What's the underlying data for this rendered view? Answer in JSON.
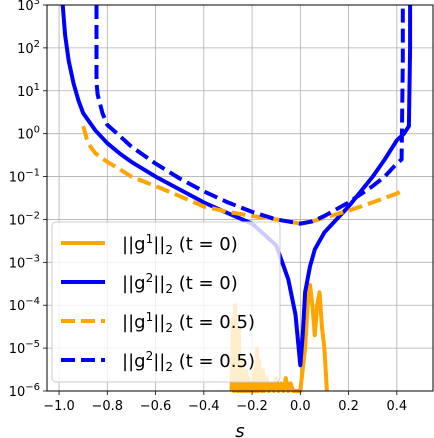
{
  "chart_data": {
    "type": "line",
    "title": "",
    "xlabel": "s",
    "ylabel": "",
    "xlim": [
      -1.05,
      0.55
    ],
    "ylim": [
      1e-06,
      1000.0
    ],
    "yscale": "log",
    "grid": true,
    "legend_location": "lower left",
    "x_ticks": [
      -1.0,
      -0.8,
      -0.6,
      -0.4,
      -0.2,
      0.0,
      0.2,
      0.4
    ],
    "x_tick_labels": [
      "−1.0",
      "−0.8",
      "−0.6",
      "−0.4",
      "−0.2",
      "0.0",
      "0.2",
      "0.4"
    ],
    "y_ticks": [
      1e-06,
      1e-05,
      0.0001,
      0.001,
      0.01,
      0.1,
      1.0,
      10.0,
      100.0,
      1000.0
    ],
    "y_tick_labels": [
      {
        "base": "10",
        "exp": "−6"
      },
      {
        "base": "10",
        "exp": "−5"
      },
      {
        "base": "10",
        "exp": "−4"
      },
      {
        "base": "10",
        "exp": "−3"
      },
      {
        "base": "10",
        "exp": "−2"
      },
      {
        "base": "10",
        "exp": "−1"
      },
      {
        "base": "10",
        "exp": "0"
      },
      {
        "base": "10",
        "exp": "1"
      },
      {
        "base": "10",
        "exp": "2"
      },
      {
        "base": "10",
        "exp": "3"
      }
    ],
    "series": [
      {
        "name": "||g¹||₂ (t = 0)",
        "label_parts": {
          "sup": "1",
          "cond": "(t = 0)"
        },
        "color": "#FFA500",
        "dash": "solid",
        "x": [
          -0.285,
          -0.28,
          -0.275,
          -0.27,
          -0.26,
          -0.255,
          -0.25,
          -0.245,
          -0.24,
          -0.235,
          -0.23,
          -0.225,
          -0.22,
          -0.215,
          -0.21,
          -0.2,
          -0.195,
          -0.19,
          -0.185,
          -0.18,
          -0.175,
          -0.17,
          -0.16,
          -0.155,
          -0.15,
          -0.14,
          -0.13,
          -0.12,
          -0.11,
          -0.1,
          -0.09,
          -0.08,
          -0.07,
          -0.06,
          -0.05,
          -0.04,
          -0.03,
          -0.02,
          0.0,
          0.02,
          0.03,
          0.04,
          0.05,
          0.06,
          0.07,
          0.08,
          0.09,
          0.1,
          0.11
        ],
        "y": [
          1e-06,
          5e-05,
          1e-06,
          0.0001,
          1e-06,
          3e-05,
          1e-06,
          5e-06,
          1e-06,
          2e-06,
          1e-06,
          3e-06,
          1e-06,
          2e-06,
          1e-06,
          1.5e-06,
          1e-06,
          3e-06,
          1e-06,
          1e-05,
          1e-06,
          5e-06,
          1e-06,
          3e-06,
          1e-06,
          2e-06,
          1e-06,
          1.5e-06,
          1e-06,
          2e-06,
          1e-06,
          1.5e-06,
          1e-06,
          2e-06,
          1e-06,
          1.5e-06,
          1e-06,
          1e-06,
          1e-06,
          1e-05,
          0.0001,
          0.0003,
          0.0001,
          2e-05,
          0.0001,
          0.0002,
          3e-05,
          1e-05,
          1e-06
        ]
      },
      {
        "name": "||g²||₂ (t = 0)",
        "label_parts": {
          "sup": "2",
          "cond": "(t = 0)"
        },
        "color": "#0000FF",
        "dash": "solid",
        "x": [
          -0.985,
          -0.975,
          -0.96,
          -0.94,
          -0.92,
          -0.9,
          -0.85,
          -0.8,
          -0.75,
          -0.7,
          -0.6,
          -0.5,
          -0.4,
          -0.3,
          -0.2,
          -0.1,
          -0.05,
          -0.02,
          0.0,
          0.01,
          0.02,
          0.04,
          0.06,
          0.1,
          0.15,
          0.2,
          0.3,
          0.35,
          0.4,
          0.43,
          0.45,
          0.455,
          0.455
        ],
        "y": [
          1000,
          200,
          50,
          15,
          6,
          3,
          1.2,
          0.6,
          0.35,
          0.22,
          0.1,
          0.05,
          0.025,
          0.014,
          0.008,
          0.0025,
          0.0004,
          6e-05,
          4e-06,
          2e-05,
          0.0002,
          0.0008,
          0.002,
          0.005,
          0.01,
          0.02,
          0.1,
          0.25,
          0.7,
          1.0,
          1.5,
          100,
          1000
        ]
      },
      {
        "name": "||g¹||₂ (t = 0.5)",
        "label_parts": {
          "sup": "1",
          "cond": "(t = 0.5)"
        },
        "color": "#FFA500",
        "dash": "dashed",
        "x": [
          -0.9,
          -0.88,
          -0.85,
          -0.8,
          -0.75,
          -0.7,
          -0.6,
          -0.5,
          -0.4,
          -0.3,
          -0.2,
          -0.1,
          0.0,
          0.05,
          0.1,
          0.2,
          0.3,
          0.4,
          0.43
        ],
        "y": [
          1.5,
          0.6,
          0.35,
          0.22,
          0.15,
          0.1,
          0.06,
          0.035,
          0.02,
          0.015,
          0.012,
          0.01,
          0.008,
          0.009,
          0.011,
          0.016,
          0.025,
          0.04,
          0.05
        ]
      },
      {
        "name": "||g²||₂ (t = 0.5)",
        "label_parts": {
          "sup": "2",
          "cond": "(t = 0.5)"
        },
        "color": "#0000FF",
        "dash": "dashed",
        "x": [
          -0.845,
          -0.845,
          -0.84,
          -0.82,
          -0.8,
          -0.75,
          -0.7,
          -0.6,
          -0.5,
          -0.4,
          -0.3,
          -0.2,
          -0.1,
          0.0,
          0.05,
          0.1,
          0.2,
          0.3,
          0.35,
          0.4,
          0.42,
          0.425,
          0.425
        ],
        "y": [
          1000,
          15,
          8,
          3,
          1.6,
          0.9,
          0.5,
          0.2,
          0.09,
          0.045,
          0.025,
          0.015,
          0.01,
          0.008,
          0.009,
          0.012,
          0.025,
          0.06,
          0.1,
          0.2,
          0.25,
          50,
          1000
        ]
      }
    ]
  }
}
